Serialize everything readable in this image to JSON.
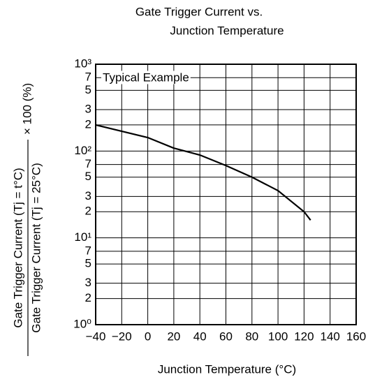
{
  "chart_data": {
    "type": "line",
    "title": [
      "Gate Trigger Current vs.",
      "Junction Temperature"
    ],
    "xlabel": "Junction Temperature  (°C)",
    "ylabel": {
      "numerator": "Gate Trigger Current (Tj = t°C)",
      "denominator": "Gate Trigger Current (Tj = 25°C)",
      "suffix": "× 100 (%)"
    },
    "annotation": "Typical Example",
    "x": [
      -40,
      0,
      20,
      40,
      60,
      80,
      100,
      120,
      125
    ],
    "series": [
      {
        "name": "Typical Example",
        "color": "#000000",
        "values": [
          200,
          143,
          108,
          90,
          68,
          50,
          35,
          20,
          16
        ]
      }
    ],
    "xlim": [
      -40,
      160
    ],
    "xticks": [
      {
        "value": -40,
        "label": "−40"
      },
      {
        "value": -20,
        "label": "−20"
      },
      0,
      20,
      40,
      60,
      80,
      100,
      120,
      140,
      160
    ],
    "ylim": [
      1,
      1000
    ],
    "log_y": true,
    "grid": true,
    "yticks": [
      {
        "value": 1,
        "label": "10⁰"
      },
      2,
      3,
      5,
      7,
      {
        "value": 10,
        "label": "10¹"
      },
      {
        "value": 20,
        "label": "2"
      },
      {
        "value": 30,
        "label": "3"
      },
      {
        "value": 50,
        "label": "5"
      },
      {
        "value": 70,
        "label": "7"
      },
      {
        "value": 100,
        "label": "10²"
      },
      {
        "value": 200,
        "label": "2"
      },
      {
        "value": 300,
        "label": "3"
      },
      {
        "value": 500,
        "label": "5"
      },
      {
        "value": 700,
        "label": "7"
      },
      {
        "value": 1000,
        "label": "10³"
      }
    ]
  }
}
